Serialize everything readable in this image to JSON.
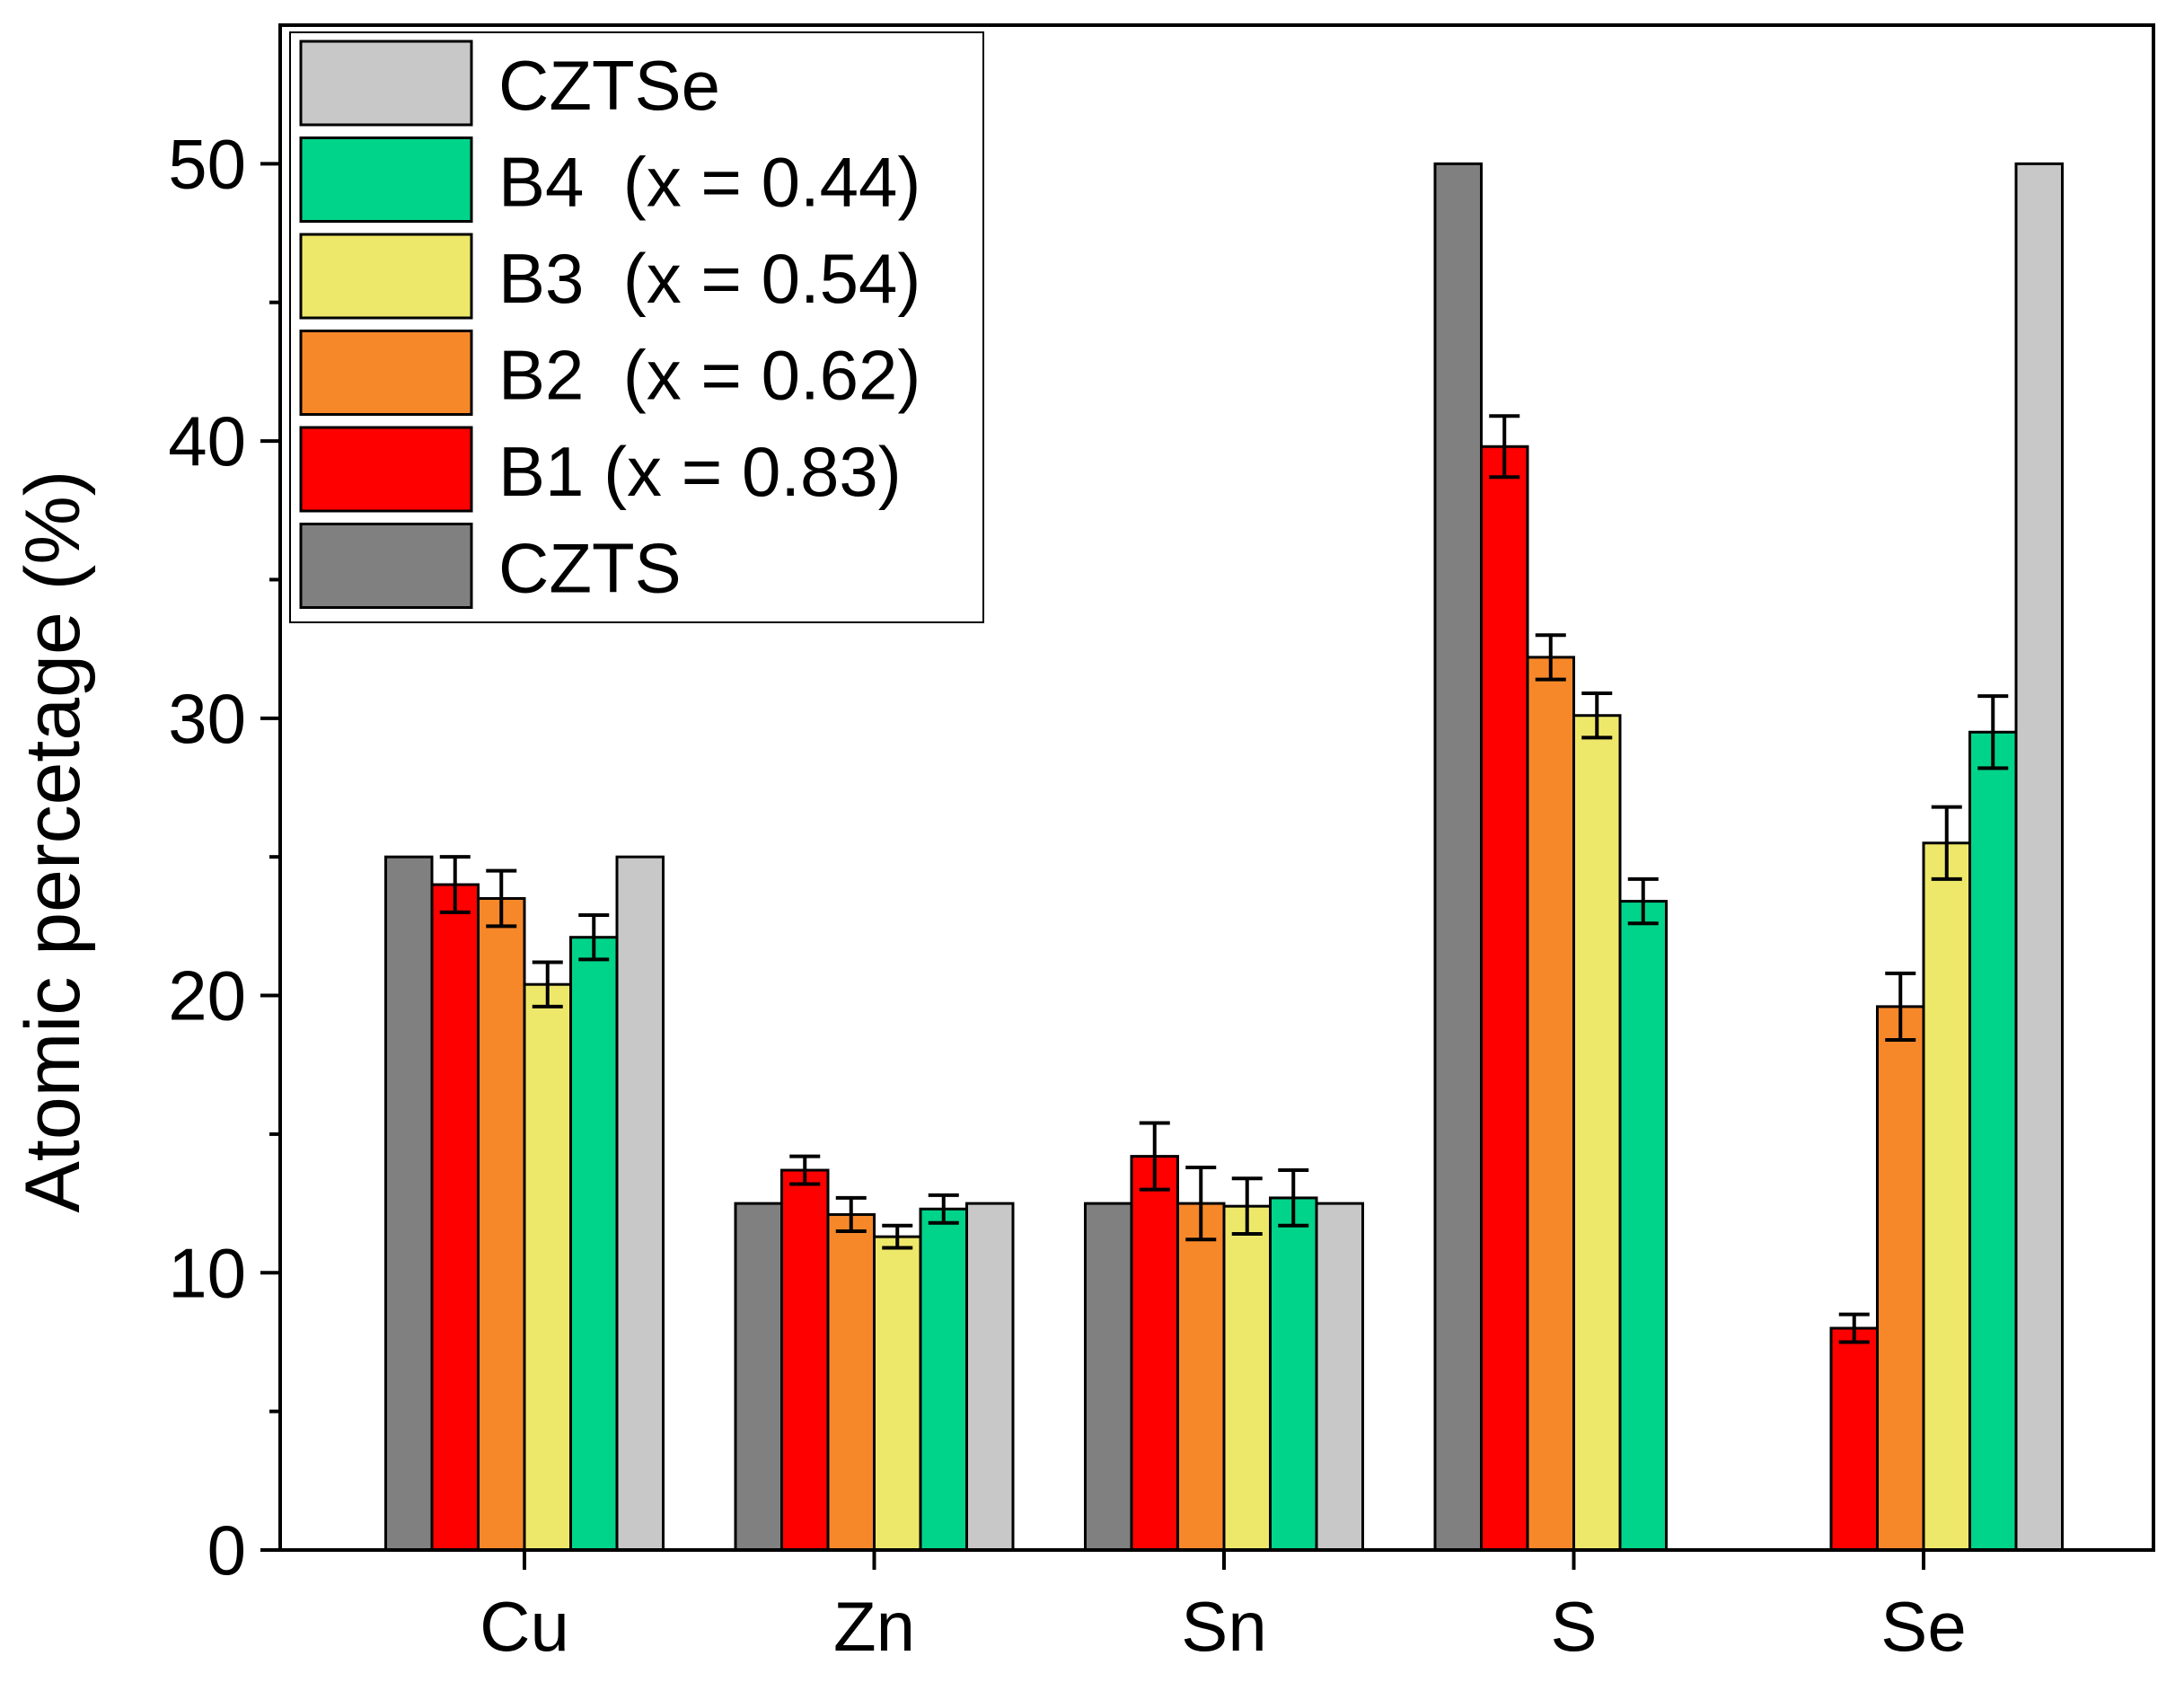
{
  "chart_data": {
    "type": "bar",
    "title": "",
    "xlabel": "",
    "ylabel": "Atomic percetage (%)",
    "ylim": [
      0,
      55
    ],
    "yticks": [
      0,
      10,
      20,
      30,
      40,
      50
    ],
    "ytick_labels": [
      "0",
      "10",
      "20",
      "30",
      "40",
      "50"
    ],
    "categories": [
      "Cu",
      "Zn",
      "Sn",
      "S",
      "Se"
    ],
    "legend_position": "top-left",
    "series": [
      {
        "name": "CZTS",
        "color": "#808080",
        "values": [
          25,
          12.5,
          12.5,
          50,
          0
        ],
        "errors": [
          null,
          null,
          null,
          null,
          null
        ]
      },
      {
        "name": "B1 (x = 0.83)",
        "color": "#ff0000",
        "values": [
          24.0,
          13.7,
          14.2,
          39.8,
          8.0
        ],
        "errors": [
          1.0,
          0.5,
          1.2,
          1.1,
          0.5
        ]
      },
      {
        "name": "B2  (x = 0.62)",
        "color": "#f7882a",
        "values": [
          23.5,
          12.1,
          12.5,
          32.2,
          19.6
        ],
        "errors": [
          1.0,
          0.6,
          1.3,
          0.8,
          1.2
        ]
      },
      {
        "name": "B3  (x = 0.54)",
        "color": "#eee86a",
        "values": [
          20.4,
          11.3,
          12.4,
          30.1,
          25.5
        ],
        "errors": [
          0.8,
          0.4,
          1.0,
          0.8,
          1.3
        ]
      },
      {
        "name": "B4  (x = 0.44)",
        "color": "#00d48a",
        "values": [
          22.1,
          12.3,
          12.7,
          23.4,
          29.5
        ],
        "errors": [
          0.8,
          0.5,
          1.0,
          0.8,
          1.3
        ]
      },
      {
        "name": "CZTSe",
        "color": "#c8c8c8",
        "values": [
          25,
          12.5,
          12.5,
          0,
          50
        ],
        "errors": [
          null,
          null,
          null,
          null,
          null
        ]
      }
    ],
    "legend_order": [
      "CZTSe",
      "B4  (x = 0.44)",
      "B3  (x = 0.54)",
      "B2  (x = 0.62)",
      "B1 (x = 0.83)",
      "CZTS"
    ]
  }
}
